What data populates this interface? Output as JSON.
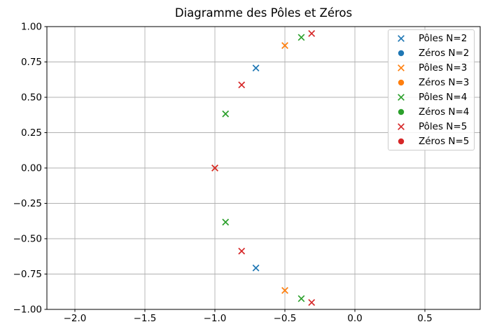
{
  "chart_data": {
    "type": "scatter",
    "title": "Diagramme des Pôles et Zéros",
    "xlabel": "",
    "ylabel": "",
    "xlim": [
      -2.2,
      0.895
    ],
    "ylim": [
      -1.0,
      1.0
    ],
    "grid": true,
    "legend_position": "upper-right",
    "xticks": {
      "values": [
        -2.0,
        -1.5,
        -1.0,
        -0.5,
        0.0,
        0.5
      ],
      "labels": [
        "−2.0",
        "−1.5",
        "−1.0",
        "−0.5",
        "0.0",
        "0.5"
      ]
    },
    "yticks": {
      "values": [
        -1.0,
        -0.75,
        -0.5,
        -0.25,
        0.0,
        0.25,
        0.5,
        0.75,
        1.0
      ],
      "labels": [
        "−1.00",
        "−0.75",
        "−0.50",
        "−0.25",
        "0.00",
        "0.25",
        "0.50",
        "0.75",
        "1.00"
      ]
    },
    "series": [
      {
        "name": "Pôles N=2",
        "marker": "x",
        "color": "#1f77b4",
        "points": [
          [
            -0.7071,
            0.7071
          ],
          [
            -0.7071,
            -0.7071
          ]
        ]
      },
      {
        "name": "Zéros N=2",
        "marker": "o",
        "color": "#1f77b4",
        "points": []
      },
      {
        "name": "Pôles N=3",
        "marker": "x",
        "color": "#ff7f0e",
        "points": [
          [
            -1.0,
            0.0
          ],
          [
            -0.5,
            0.866
          ],
          [
            -0.5,
            -0.866
          ]
        ]
      },
      {
        "name": "Zéros N=3",
        "marker": "o",
        "color": "#ff7f0e",
        "points": []
      },
      {
        "name": "Pôles N=4",
        "marker": "x",
        "color": "#2ca02c",
        "points": [
          [
            -0.3827,
            0.9239
          ],
          [
            -0.9239,
            0.3827
          ],
          [
            -0.9239,
            -0.3827
          ],
          [
            -0.3827,
            -0.9239
          ]
        ]
      },
      {
        "name": "Zéros N=4",
        "marker": "o",
        "color": "#2ca02c",
        "points": []
      },
      {
        "name": "Pôles N=5",
        "marker": "x",
        "color": "#d62728",
        "points": [
          [
            -1.0,
            0.0
          ],
          [
            -0.309,
            0.9511
          ],
          [
            -0.809,
            0.5878
          ],
          [
            -0.809,
            -0.5878
          ],
          [
            -0.309,
            -0.9511
          ]
        ]
      },
      {
        "name": "Zéros N=5",
        "marker": "o",
        "color": "#d62728",
        "points": []
      }
    ]
  },
  "colors": {
    "background": "#ffffff",
    "axis": "#000000",
    "grid": "#b0b0b0",
    "tick_text": "#000000",
    "legend_border": "#cccccc"
  }
}
